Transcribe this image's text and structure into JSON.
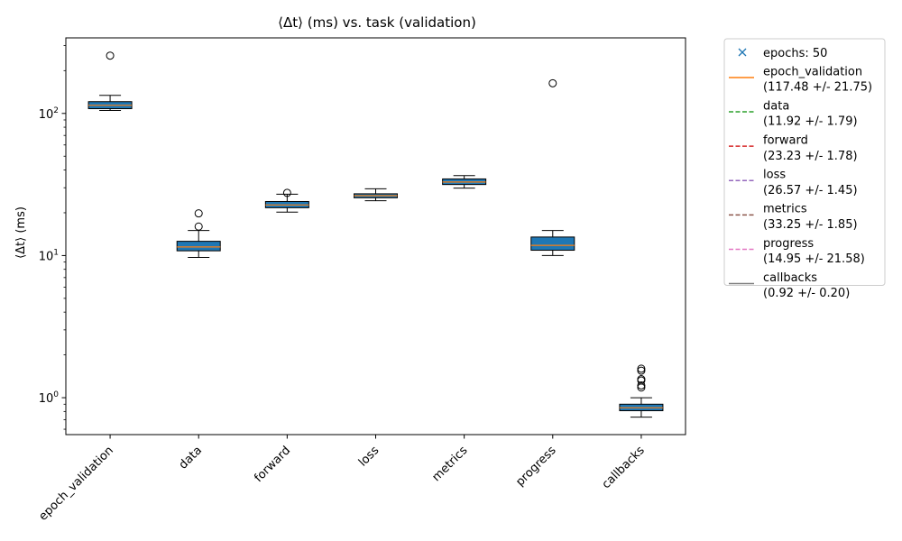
{
  "chart_data": {
    "type": "box",
    "title": "⟨Δt⟩ (ms) vs. task (validation)",
    "ylabel": "⟨Δt⟩ (ms)",
    "xlabel": "",
    "yscale": "log",
    "ylim": [
      0.55,
      340
    ],
    "yticks": [
      {
        "value": 1,
        "label": "10",
        "exp": "0"
      },
      {
        "value": 10,
        "label": "10",
        "exp": "1"
      },
      {
        "value": 100,
        "label": "10",
        "exp": "2"
      }
    ],
    "categories": [
      "epoch_validation",
      "data",
      "forward",
      "loss",
      "metrics",
      "progress",
      "callbacks"
    ],
    "boxes": [
      {
        "category": "epoch_validation",
        "whislo": 105,
        "q1": 108,
        "med": 114,
        "q3": 121,
        "whishi": 134,
        "fliers": [
          255
        ]
      },
      {
        "category": "data",
        "whislo": 9.7,
        "q1": 10.8,
        "med": 11.5,
        "q3": 12.6,
        "whishi": 15.0,
        "fliers": [
          16.0,
          19.8
        ]
      },
      {
        "category": "forward",
        "whislo": 20.2,
        "q1": 21.7,
        "med": 22.7,
        "q3": 24.0,
        "whishi": 27.0,
        "fliers": [
          27.6
        ]
      },
      {
        "category": "loss",
        "whislo": 24.3,
        "q1": 25.5,
        "med": 26.4,
        "q3": 27.2,
        "whishi": 29.5,
        "fliers": []
      },
      {
        "category": "metrics",
        "whislo": 29.8,
        "q1": 31.6,
        "med": 32.9,
        "q3": 34.6,
        "whishi": 36.5,
        "fliers": []
      },
      {
        "category": "progress",
        "whislo": 10.0,
        "q1": 10.9,
        "med": 11.8,
        "q3": 13.5,
        "whishi": 15.0,
        "fliers": [
          163
        ]
      },
      {
        "category": "callbacks",
        "whislo": 0.73,
        "q1": 0.81,
        "med": 0.85,
        "q3": 0.9,
        "whishi": 1.0,
        "fliers": [
          1.18,
          1.22,
          1.32,
          1.35,
          1.55,
          1.6
        ]
      }
    ],
    "box_color": "#1f77b4",
    "median_color": "#ff7f0e",
    "grid": false,
    "legend": {
      "placement": "outside-right",
      "entries": [
        {
          "label": "epochs: 50",
          "style": "marker-x",
          "color": "#1f77b4"
        },
        {
          "label": "epoch_validation\n(117.48 +/- 21.75)",
          "style": "solid",
          "color": "#ff7f0e"
        },
        {
          "label": "data\n(11.92 +/- 1.79)",
          "style": "dashed",
          "color": "#2ca02c"
        },
        {
          "label": "forward\n(23.23 +/- 1.78)",
          "style": "dashed",
          "color": "#d62728"
        },
        {
          "label": "loss\n(26.57 +/- 1.45)",
          "style": "dashed",
          "color": "#9467bd"
        },
        {
          "label": "metrics\n(33.25 +/- 1.85)",
          "style": "dashed",
          "color": "#8c564b"
        },
        {
          "label": "progress\n(14.95 +/- 21.58)",
          "style": "dashed",
          "color": "#e377c2"
        },
        {
          "label": "callbacks\n(0.92 +/- 0.20)",
          "style": "solid",
          "color": "#7f7f7f"
        }
      ]
    }
  }
}
